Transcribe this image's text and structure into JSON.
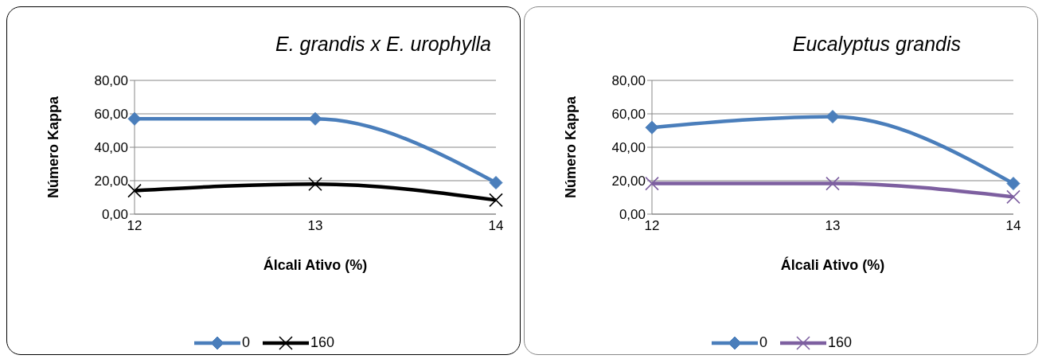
{
  "chart_data": [
    {
      "type": "line",
      "title": "E. grandis x E. urophylla",
      "xlabel": "Álcali Ativo (%)",
      "ylabel": "Número Kappa",
      "categories": [
        "12",
        "13",
        "14"
      ],
      "series": [
        {
          "name": "0",
          "color": "#4a7ebb",
          "marker": "diamond",
          "values": [
            57.0,
            57.0,
            18.8
          ]
        },
        {
          "name": "160",
          "color": "#000000",
          "marker": "cross",
          "values": [
            14.0,
            18.0,
            8.4
          ]
        }
      ],
      "ylim": [
        0,
        80
      ],
      "yticks": [
        {
          "value": 0,
          "label": "0,00"
        },
        {
          "value": 20,
          "label": "20,00"
        },
        {
          "value": 40,
          "label": "40,00"
        },
        {
          "value": 60,
          "label": "60,00"
        },
        {
          "value": 80,
          "label": "80,00"
        }
      ],
      "grid": "y",
      "legend": "bottom",
      "line_style": "solid"
    },
    {
      "type": "line",
      "title": "Eucalyptus grandis",
      "xlabel": "Álcali Ativo (%)",
      "ylabel": "Número Kappa",
      "categories": [
        "12",
        "13",
        "14"
      ],
      "series": [
        {
          "name": "0",
          "color": "#4a7ebb",
          "marker": "diamond",
          "values": [
            51.8,
            58.3,
            18.3
          ]
        },
        {
          "name": "160",
          "color": "#7d5fa0",
          "marker": "cross",
          "values": [
            18.3,
            18.3,
            10.3
          ]
        }
      ],
      "ylim": [
        0,
        80
      ],
      "yticks": [
        {
          "value": 0,
          "label": "0,00"
        },
        {
          "value": 20,
          "label": "20,00"
        },
        {
          "value": 40,
          "label": "40,00"
        },
        {
          "value": 60,
          "label": "60,00"
        },
        {
          "value": 80,
          "label": "80,00"
        }
      ],
      "grid": "y",
      "legend": "bottom",
      "line_style": "solid"
    }
  ]
}
